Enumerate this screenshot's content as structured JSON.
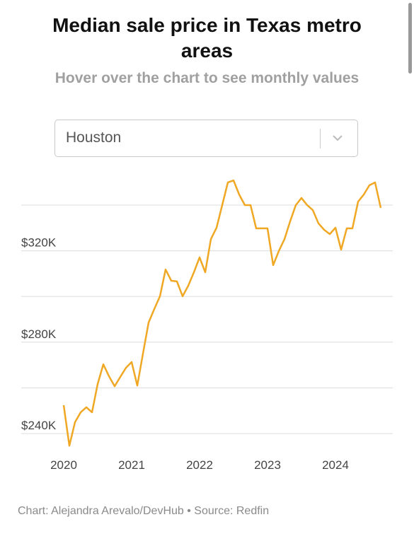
{
  "controls": {
    "metro_select": "Houston"
  },
  "chart_data": {
    "type": "line",
    "title": "Median sale price in Texas metro areas",
    "subtitle": "Hover over the chart to see monthly values",
    "source": "Chart: Alejandra Arevalo/DevHub • Source: Redfin",
    "color": "#f0a824",
    "x": [
      "2020-01",
      "2020-02",
      "2020-03",
      "2020-04",
      "2020-05",
      "2020-06",
      "2020-07",
      "2020-08",
      "2020-09",
      "2020-10",
      "2020-11",
      "2020-12",
      "2021-01",
      "2021-02",
      "2021-03",
      "2021-04",
      "2021-05",
      "2021-06",
      "2021-07",
      "2021-08",
      "2021-09",
      "2021-10",
      "2021-11",
      "2021-12",
      "2022-01",
      "2022-02",
      "2022-03",
      "2022-04",
      "2022-05",
      "2022-06",
      "2022-07",
      "2022-08",
      "2022-09",
      "2022-10",
      "2022-11",
      "2022-12",
      "2023-01",
      "2023-02",
      "2023-03",
      "2023-04",
      "2023-05",
      "2023-06",
      "2023-07",
      "2023-08",
      "2023-09",
      "2023-10",
      "2023-11",
      "2023-12",
      "2024-01",
      "2024-02",
      "2024-03",
      "2024-04",
      "2024-05",
      "2024-06",
      "2024-07",
      "2024-08",
      "2024-09"
    ],
    "values": [
      252400,
      234700,
      245000,
      249300,
      251500,
      249300,
      261700,
      270300,
      265100,
      260700,
      264800,
      268800,
      271300,
      261000,
      275000,
      288600,
      294500,
      300100,
      311800,
      306900,
      306600,
      300100,
      304700,
      310600,
      317100,
      310600,
      325100,
      330100,
      340000,
      349900,
      350800,
      344600,
      340000,
      340000,
      329800,
      329800,
      329800,
      313700,
      319900,
      325100,
      332900,
      340000,
      343100,
      340000,
      337800,
      332000,
      329200,
      327300,
      330100,
      320500,
      329800,
      329800,
      341500,
      344600,
      348700,
      349900,
      338800
    ],
    "xlim": [
      "2020-01",
      "2024-09"
    ],
    "xticks": [
      2020,
      2021,
      2022,
      2023,
      2024
    ],
    "ylim": [
      234000,
      352000
    ],
    "yticks": [
      {
        "value": 240000,
        "label": "$240K"
      },
      {
        "value": 280000,
        "label": "$280K"
      },
      {
        "value": 320000,
        "label": "$320K"
      }
    ],
    "ygrid": [
      260000,
      300000,
      340000
    ],
    "grid": true
  }
}
